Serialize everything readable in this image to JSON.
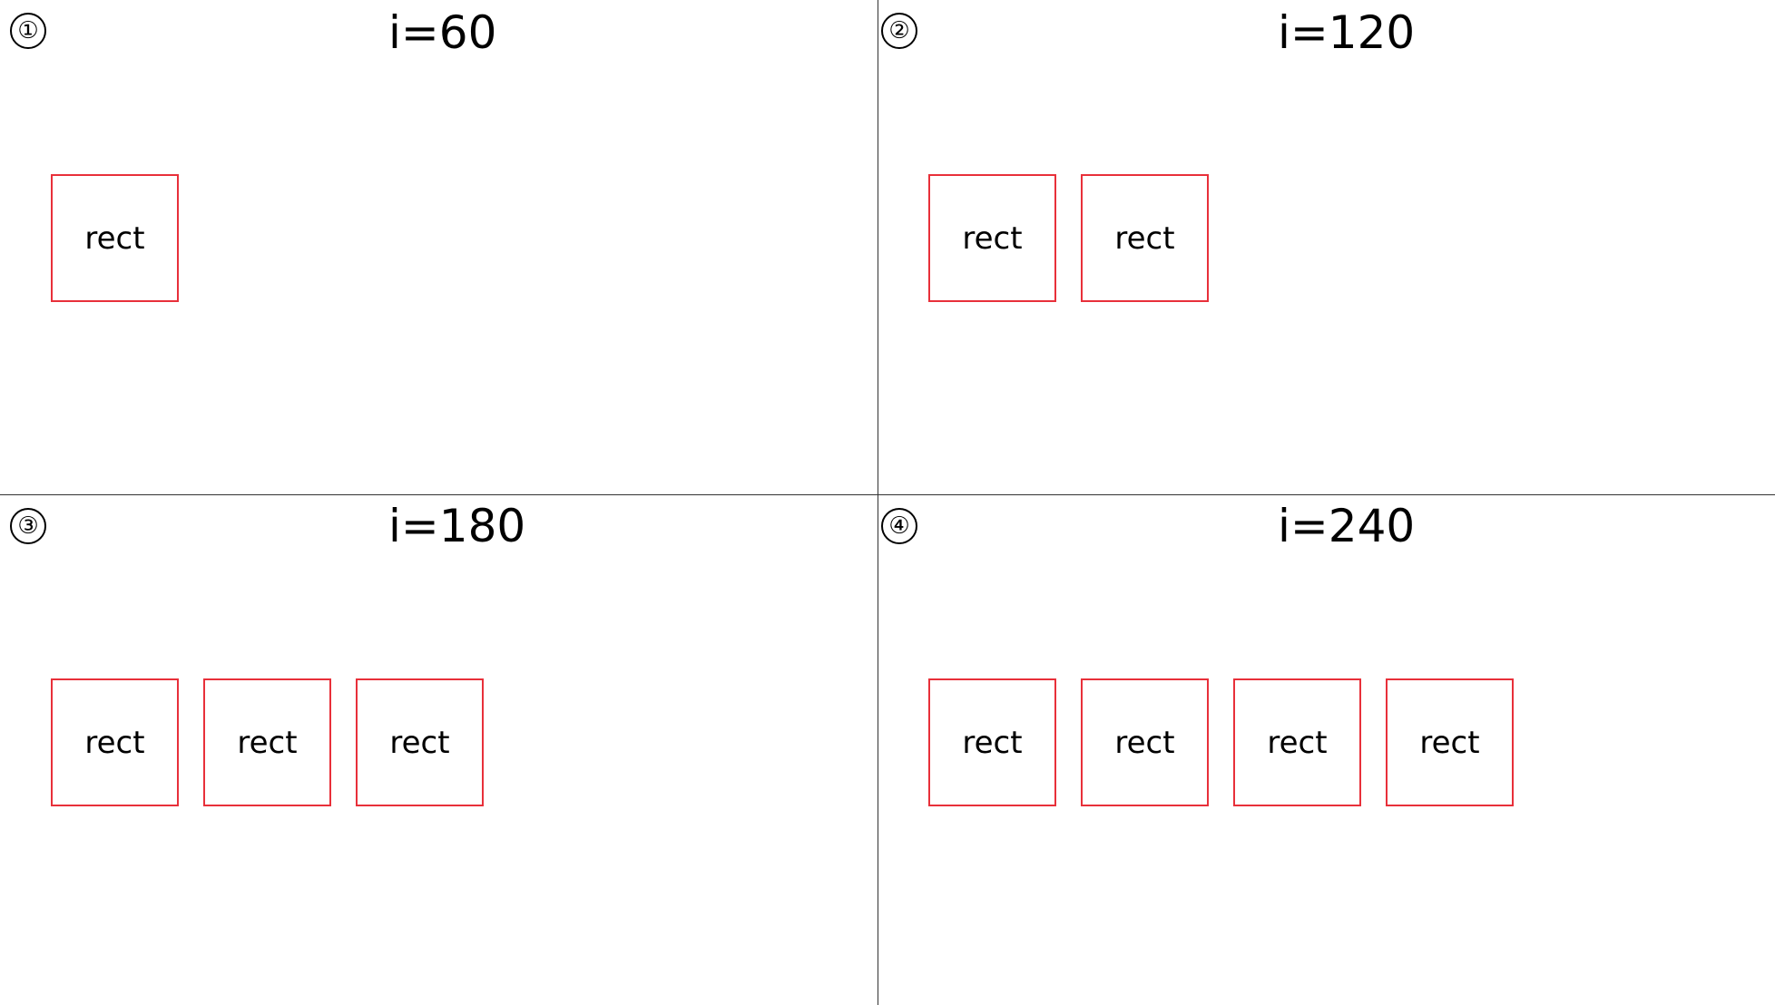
{
  "panels": [
    {
      "marker": "①",
      "title": "i=60",
      "rects": [
        "rect"
      ]
    },
    {
      "marker": "②",
      "title": "i=120",
      "rects": [
        "rect",
        "rect"
      ]
    },
    {
      "marker": "③",
      "title": "i=180",
      "rects": [
        "rect",
        "rect",
        "rect"
      ]
    },
    {
      "marker": "④",
      "title": "i=240",
      "rects": [
        "rect",
        "rect",
        "rect",
        "rect"
      ]
    }
  ],
  "colors": {
    "rect_border": "#e8303a",
    "divider": "#333333",
    "text": "#000000",
    "background": "#ffffff"
  }
}
